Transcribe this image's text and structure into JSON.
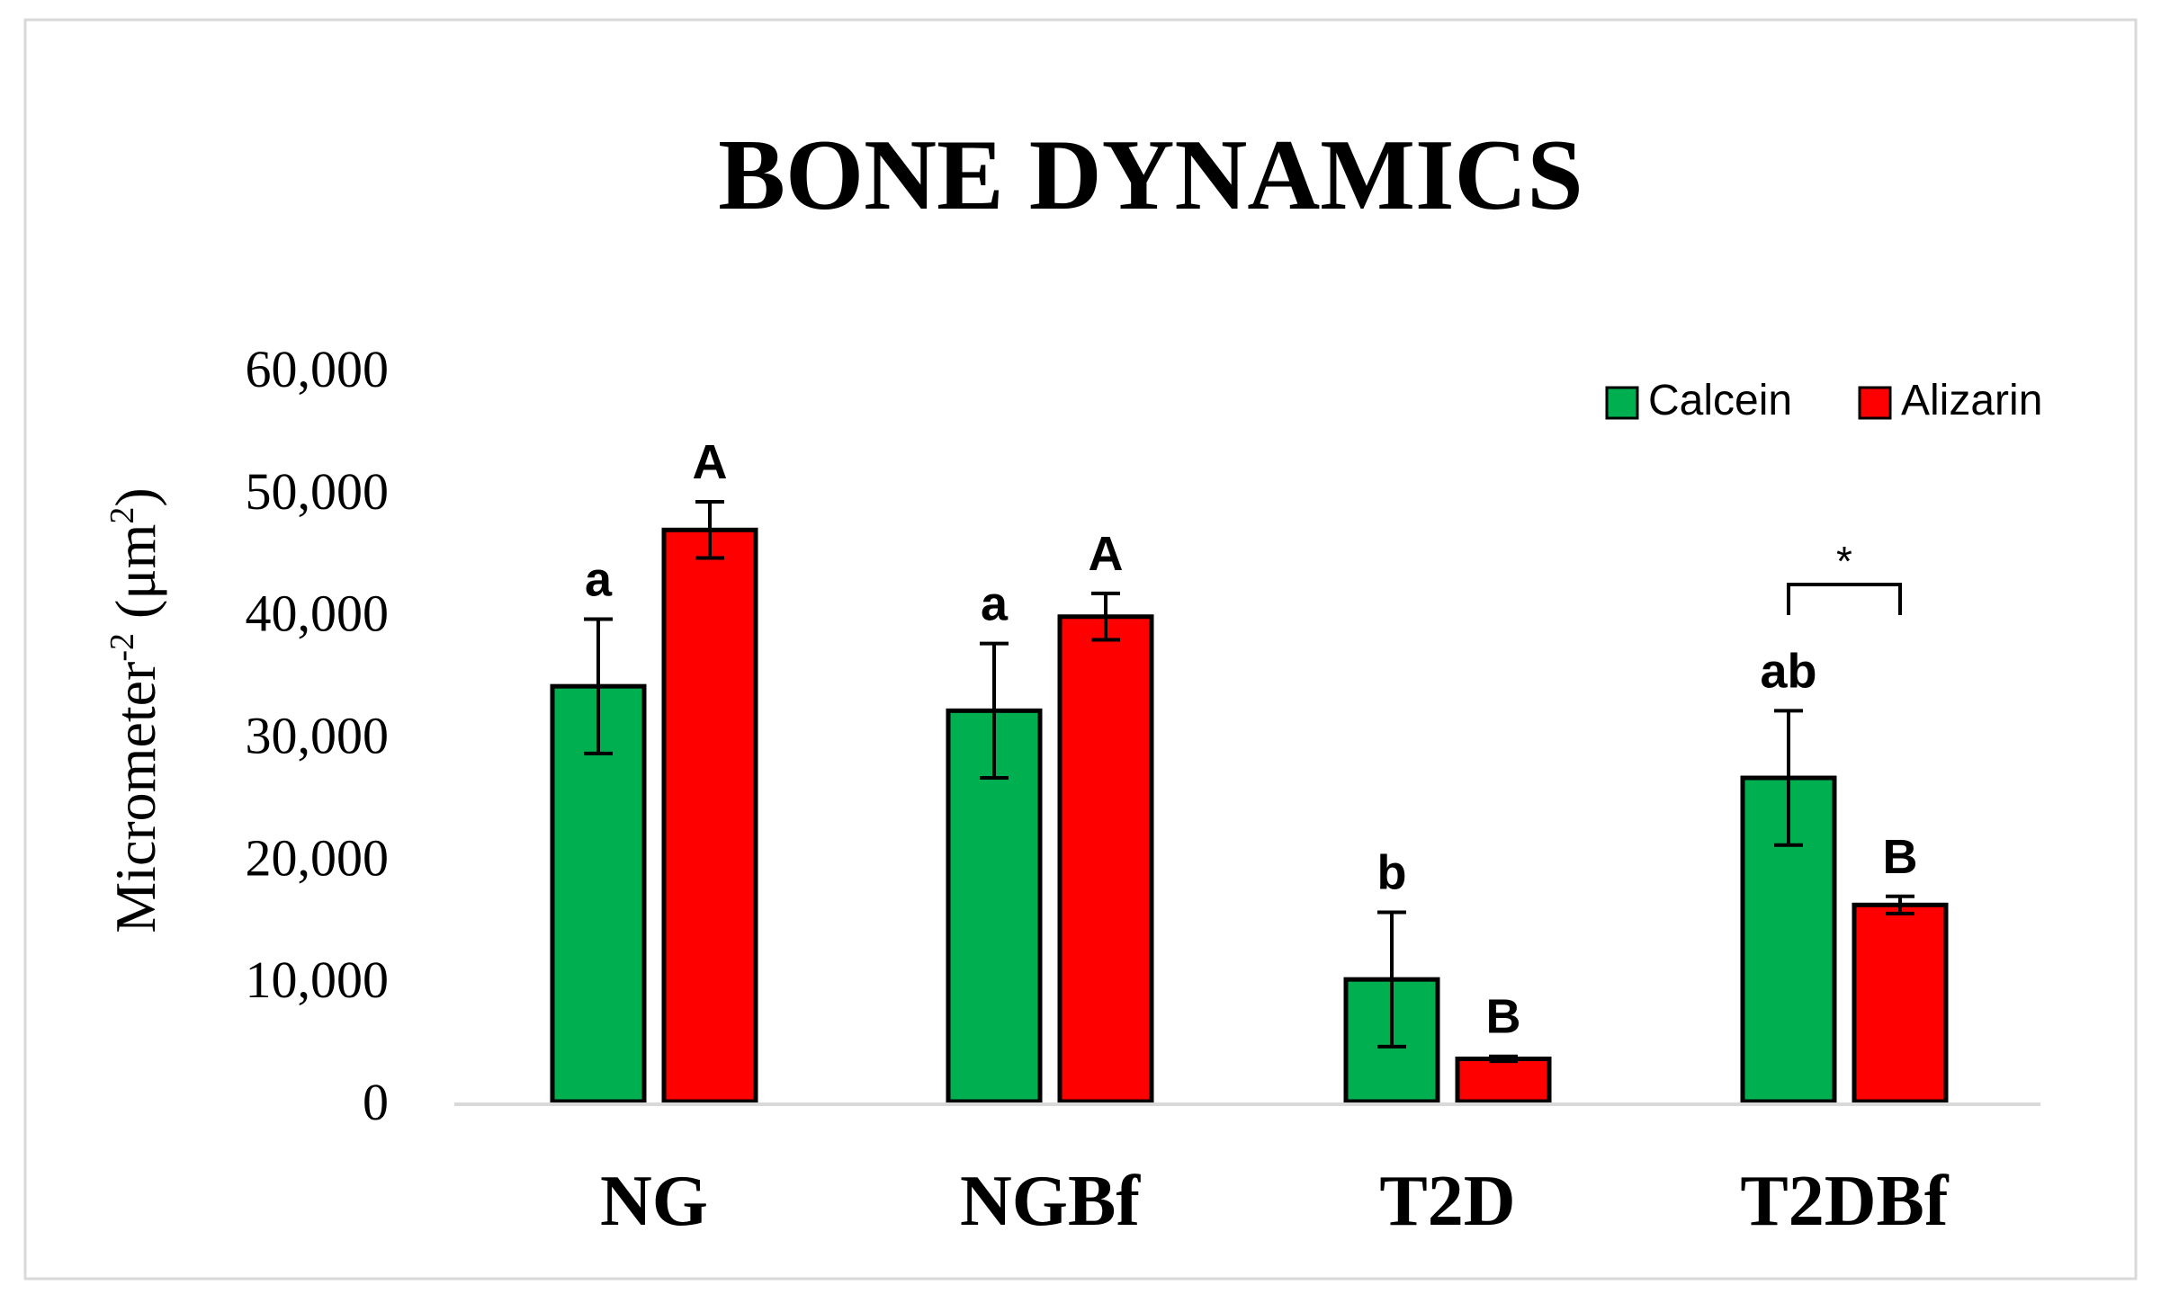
{
  "chart_data": {
    "type": "bar",
    "title": "BONE DYNAMICS",
    "ylabel": "Micrometer",
    "ylabel_sup": "-2",
    "ylabel_unit_prefix": "(μm",
    "ylabel_unit_sup": "2",
    "ylabel_unit_suffix": ")",
    "ylim": [
      0,
      60000
    ],
    "yticks": [
      0,
      10000,
      20000,
      30000,
      40000,
      50000,
      60000
    ],
    "ytick_labels": [
      "0",
      "10,000",
      "20,000",
      "30,000",
      "40,000",
      "50,000",
      "60,000"
    ],
    "grid": false,
    "legend_position": "top-right",
    "categories": [
      "NG",
      "NGBf",
      "T2D",
      "T2DBf"
    ],
    "series": [
      {
        "name": "Calcein",
        "color": "#00b050",
        "values": [
          34000,
          32000,
          10000,
          26500
        ],
        "errors": [
          5500,
          5500,
          5500,
          5500
        ],
        "labels": [
          "a",
          "a",
          "b",
          "ab"
        ]
      },
      {
        "name": "Alizarin",
        "color": "#ff0000",
        "values": [
          46800,
          39700,
          3500,
          16100
        ],
        "errors": [
          2300,
          1900,
          200,
          700
        ],
        "labels": [
          "A",
          "A",
          "B",
          "B"
        ]
      }
    ],
    "annotations": [
      {
        "category": "T2DBf",
        "text": "*",
        "type": "significance-bracket"
      }
    ]
  }
}
